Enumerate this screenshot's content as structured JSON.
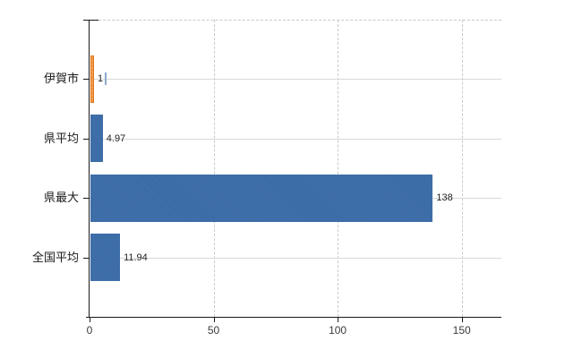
{
  "chart_data": {
    "type": "bar",
    "orientation": "horizontal",
    "categories": [
      "伊賀市",
      "県平均",
      "県最大",
      "全国平均"
    ],
    "values": [
      1,
      4.97,
      138,
      11.94
    ],
    "value_labels": [
      "1",
      "4.97",
      "138",
      "11.94"
    ],
    "highlight_index": 0,
    "xlim": [
      0,
      166
    ],
    "xticks": [
      0,
      50,
      100,
      150
    ],
    "xtick_labels": [
      "0",
      "50",
      "100",
      "150"
    ],
    "grid": {
      "vertical_style": "dashed",
      "horizontal_style": "solid",
      "top_border_style": "dashed"
    },
    "legend": "none",
    "colors": {
      "background": "#ffffff",
      "default_bar": "#3a6ba6",
      "highlight_bar": "#f09138",
      "highlight_bar_border": "#e0761e",
      "axis": "#1a1a1a",
      "grid_vertical": "#c9c9cd",
      "grid_horizontal": "#d6dbd3",
      "category_label": "#1a1a1a",
      "value_label": "#222222",
      "tick_label": "#3a3a3a",
      "caret_artifact": "#8ca9cd"
    }
  }
}
